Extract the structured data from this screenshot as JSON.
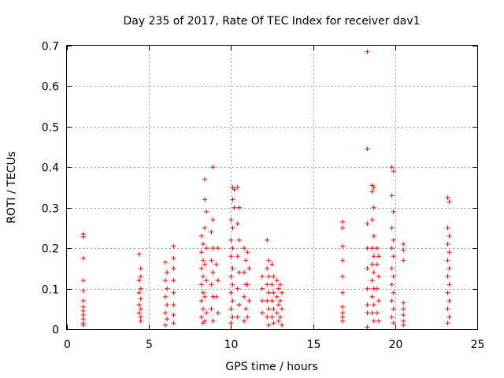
{
  "chart_data": {
    "type": "scatter",
    "title": "Day 235 of 2017, Rate Of TEC Index for receiver dav1",
    "xlabel": "GPS time / hours",
    "ylabel": "ROTI / TECUs",
    "xlim": [
      0,
      25
    ],
    "ylim": [
      0,
      0.7
    ],
    "x_ticks": [
      0,
      5,
      10,
      15,
      20,
      25
    ],
    "x_tick_labels": [
      "0",
      "5",
      "10",
      "15",
      "20",
      "25"
    ],
    "y_ticks": [
      0,
      0.1,
      0.2,
      0.3,
      0.4,
      0.5,
      0.6,
      0.7
    ],
    "y_tick_labels": [
      "0",
      "0.1",
      "0.2",
      "0.3",
      "0.4",
      "0.5",
      "0.6",
      "0.7"
    ],
    "grid": true,
    "marker": "+",
    "marker_color": "#ff0000",
    "series": [
      {
        "name": "dav1",
        "points": [
          [
            1.0,
            0.235
          ],
          [
            1.0,
            0.228
          ],
          [
            1.0,
            0.175
          ],
          [
            1.0,
            0.12
          ],
          [
            1.0,
            0.095
          ],
          [
            1.0,
            0.07
          ],
          [
            1.0,
            0.055
          ],
          [
            1.0,
            0.045
          ],
          [
            1.0,
            0.035
          ],
          [
            1.0,
            0.025
          ],
          [
            1.0,
            0.015
          ],
          [
            1.0,
            0.01
          ],
          [
            4.4,
            0.185
          ],
          [
            4.5,
            0.15
          ],
          [
            4.5,
            0.13
          ],
          [
            4.4,
            0.12
          ],
          [
            4.5,
            0.1
          ],
          [
            4.4,
            0.09
          ],
          [
            4.5,
            0.075
          ],
          [
            4.4,
            0.06
          ],
          [
            4.5,
            0.05
          ],
          [
            4.4,
            0.04
          ],
          [
            4.5,
            0.03
          ],
          [
            4.5,
            0.02
          ],
          [
            6.0,
            0.165
          ],
          [
            6.1,
            0.14
          ],
          [
            6.0,
            0.12
          ],
          [
            6.1,
            0.1
          ],
          [
            6.0,
            0.08
          ],
          [
            6.1,
            0.06
          ],
          [
            6.0,
            0.04
          ],
          [
            6.1,
            0.025
          ],
          [
            6.0,
            0.01
          ],
          [
            6.5,
            0.205
          ],
          [
            6.5,
            0.175
          ],
          [
            6.5,
            0.15
          ],
          [
            6.5,
            0.12
          ],
          [
            6.5,
            0.09
          ],
          [
            6.5,
            0.06
          ],
          [
            6.5,
            0.035
          ],
          [
            6.5,
            0.015
          ],
          [
            8.2,
            0.23
          ],
          [
            8.3,
            0.21
          ],
          [
            8.2,
            0.19
          ],
          [
            8.3,
            0.17
          ],
          [
            8.2,
            0.15
          ],
          [
            8.3,
            0.13
          ],
          [
            8.2,
            0.11
          ],
          [
            8.3,
            0.09
          ],
          [
            8.2,
            0.07
          ],
          [
            8.3,
            0.05
          ],
          [
            8.2,
            0.03
          ],
          [
            8.3,
            0.015
          ],
          [
            8.4,
            0.37
          ],
          [
            8.4,
            0.32
          ],
          [
            8.5,
            0.29
          ],
          [
            8.4,
            0.25
          ],
          [
            8.5,
            0.2
          ],
          [
            8.4,
            0.16
          ],
          [
            8.5,
            0.12
          ],
          [
            8.4,
            0.08
          ],
          [
            8.5,
            0.04
          ],
          [
            8.4,
            0.02
          ],
          [
            8.9,
            0.4
          ],
          [
            8.9,
            0.27
          ],
          [
            8.8,
            0.24
          ],
          [
            8.9,
            0.2
          ],
          [
            8.8,
            0.17
          ],
          [
            8.9,
            0.14
          ],
          [
            8.8,
            0.11
          ],
          [
            8.9,
            0.08
          ],
          [
            8.8,
            0.05
          ],
          [
            8.9,
            0.02
          ],
          [
            9.2,
            0.2
          ],
          [
            9.1,
            0.16
          ],
          [
            9.2,
            0.12
          ],
          [
            9.1,
            0.08
          ],
          [
            9.2,
            0.04
          ],
          [
            10.1,
            0.35
          ],
          [
            10.2,
            0.345
          ],
          [
            10.1,
            0.32
          ],
          [
            10.2,
            0.3
          ],
          [
            10.0,
            0.27
          ],
          [
            10.1,
            0.25
          ],
          [
            10.0,
            0.22
          ],
          [
            10.1,
            0.2
          ],
          [
            10.0,
            0.18
          ],
          [
            10.1,
            0.15
          ],
          [
            10.0,
            0.13
          ],
          [
            10.1,
            0.11
          ],
          [
            10.0,
            0.09
          ],
          [
            10.1,
            0.07
          ],
          [
            10.0,
            0.05
          ],
          [
            10.1,
            0.03
          ],
          [
            10.0,
            0.015
          ],
          [
            10.4,
            0.35
          ],
          [
            10.5,
            0.3
          ],
          [
            10.4,
            0.26
          ],
          [
            10.5,
            0.22
          ],
          [
            10.4,
            0.18
          ],
          [
            10.5,
            0.14
          ],
          [
            10.4,
            0.1
          ],
          [
            10.5,
            0.06
          ],
          [
            10.4,
            0.03
          ],
          [
            10.8,
            0.2
          ],
          [
            10.9,
            0.17
          ],
          [
            10.8,
            0.14
          ],
          [
            10.9,
            0.11
          ],
          [
            10.8,
            0.08
          ],
          [
            10.9,
            0.05
          ],
          [
            10.8,
            0.02
          ],
          [
            11.0,
            0.19
          ],
          [
            11.1,
            0.15
          ],
          [
            11.0,
            0.11
          ],
          [
            11.1,
            0.07
          ],
          [
            11.0,
            0.03
          ],
          [
            11.9,
            0.13
          ],
          [
            11.9,
            0.1
          ],
          [
            11.9,
            0.07
          ],
          [
            11.9,
            0.04
          ],
          [
            12.2,
            0.22
          ],
          [
            12.3,
            0.17
          ],
          [
            12.2,
            0.15
          ],
          [
            12.3,
            0.13
          ],
          [
            12.2,
            0.11
          ],
          [
            12.3,
            0.09
          ],
          [
            12.2,
            0.07
          ],
          [
            12.3,
            0.05
          ],
          [
            12.2,
            0.03
          ],
          [
            12.3,
            0.01
          ],
          [
            12.5,
            0.16
          ],
          [
            12.6,
            0.13
          ],
          [
            12.5,
            0.11
          ],
          [
            12.6,
            0.09
          ],
          [
            12.5,
            0.07
          ],
          [
            12.6,
            0.05
          ],
          [
            12.5,
            0.03
          ],
          [
            12.6,
            0.015
          ],
          [
            12.8,
            0.12
          ],
          [
            12.9,
            0.1
          ],
          [
            12.8,
            0.08
          ],
          [
            12.9,
            0.06
          ],
          [
            12.8,
            0.04
          ],
          [
            12.9,
            0.02
          ],
          [
            13.0,
            0.11
          ],
          [
            13.1,
            0.09
          ],
          [
            13.0,
            0.07
          ],
          [
            13.1,
            0.05
          ],
          [
            13.0,
            0.03
          ],
          [
            13.1,
            0.01
          ],
          [
            16.8,
            0.265
          ],
          [
            16.8,
            0.25
          ],
          [
            16.8,
            0.205
          ],
          [
            16.8,
            0.17
          ],
          [
            16.8,
            0.13
          ],
          [
            16.8,
            0.09
          ],
          [
            16.8,
            0.055
          ],
          [
            16.8,
            0.04
          ],
          [
            16.8,
            0.03
          ],
          [
            16.8,
            0.02
          ],
          [
            18.3,
            0.685
          ],
          [
            18.3,
            0.445
          ],
          [
            18.3,
            0.26
          ],
          [
            18.3,
            0.2
          ],
          [
            18.3,
            0.15
          ],
          [
            18.3,
            0.1
          ],
          [
            18.3,
            0.06
          ],
          [
            18.3,
            0.04
          ],
          [
            18.3,
            0.005
          ],
          [
            18.6,
            0.355
          ],
          [
            18.7,
            0.35
          ],
          [
            18.6,
            0.34
          ],
          [
            18.7,
            0.3
          ],
          [
            18.6,
            0.27
          ],
          [
            18.7,
            0.23
          ],
          [
            18.6,
            0.2
          ],
          [
            18.7,
            0.18
          ],
          [
            18.6,
            0.16
          ],
          [
            18.7,
            0.14
          ],
          [
            18.6,
            0.12
          ],
          [
            18.7,
            0.1
          ],
          [
            18.6,
            0.08
          ],
          [
            18.7,
            0.06
          ],
          [
            18.6,
            0.04
          ],
          [
            18.7,
            0.02
          ],
          [
            18.9,
            0.2
          ],
          [
            19.0,
            0.18
          ],
          [
            18.9,
            0.16
          ],
          [
            19.0,
            0.13
          ],
          [
            18.9,
            0.1
          ],
          [
            19.0,
            0.07
          ],
          [
            18.9,
            0.04
          ],
          [
            19.0,
            0.02
          ],
          [
            19.8,
            0.4
          ],
          [
            19.9,
            0.39
          ],
          [
            19.8,
            0.33
          ],
          [
            19.9,
            0.29
          ],
          [
            19.8,
            0.25
          ],
          [
            19.9,
            0.22
          ],
          [
            19.8,
            0.2
          ],
          [
            19.9,
            0.18
          ],
          [
            19.8,
            0.15
          ],
          [
            19.9,
            0.13
          ],
          [
            19.8,
            0.11
          ],
          [
            19.9,
            0.09
          ],
          [
            19.8,
            0.07
          ],
          [
            19.9,
            0.05
          ],
          [
            19.8,
            0.03
          ],
          [
            19.9,
            0.015
          ],
          [
            20.5,
            0.21
          ],
          [
            20.5,
            0.195
          ],
          [
            20.5,
            0.17
          ],
          [
            20.5,
            0.065
          ],
          [
            20.5,
            0.05
          ],
          [
            20.5,
            0.035
          ],
          [
            20.5,
            0.02
          ],
          [
            20.5,
            0.01
          ],
          [
            23.2,
            0.325
          ],
          [
            23.3,
            0.315
          ],
          [
            23.2,
            0.25
          ],
          [
            23.3,
            0.23
          ],
          [
            23.2,
            0.21
          ],
          [
            23.3,
            0.19
          ],
          [
            23.2,
            0.17
          ],
          [
            23.3,
            0.15
          ],
          [
            23.2,
            0.13
          ],
          [
            23.3,
            0.11
          ],
          [
            23.2,
            0.09
          ],
          [
            23.3,
            0.07
          ],
          [
            23.2,
            0.05
          ],
          [
            23.3,
            0.03
          ],
          [
            23.2,
            0.015
          ]
        ]
      }
    ]
  }
}
